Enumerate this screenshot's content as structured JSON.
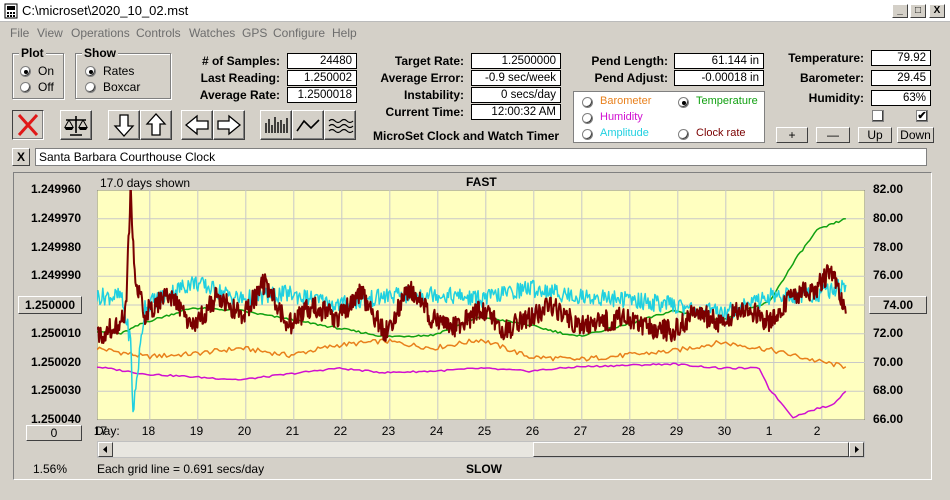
{
  "window": {
    "title": "C:\\microset\\2020_10_02.mst",
    "minimize": "_",
    "maximize": "□",
    "close": "X"
  },
  "menu": [
    "File",
    "View",
    "Operations",
    "Controls",
    "Watches",
    "GPS",
    "Configure",
    "Help"
  ],
  "plot": {
    "title": "Plot",
    "options": [
      "On",
      "Off"
    ],
    "selected": "On"
  },
  "show": {
    "title": "Show",
    "options": [
      "Rates",
      "Boxcar"
    ],
    "selected": "Rates"
  },
  "stats": {
    "samples_label": "# of Samples:",
    "samples": "24480",
    "last_label": "Last Reading:",
    "last": "1.250002",
    "avg_rate_label": "Average Rate:",
    "avg_rate": "1.2500018",
    "target_label": "Target Rate:",
    "target": "1.2500000",
    "avg_err_label": "Average Error:",
    "avg_err": "-0.9 sec/week",
    "instab_label": "Instability:",
    "instab": "0 secs/day",
    "time_label": "Current Time:",
    "time": "12:00:32 AM",
    "pend_len_label": "Pend Length:",
    "pend_len": "61.144 in",
    "pend_adj_label": "Pend Adjust:",
    "pend_adj": "-0.00018 in",
    "temp_label": "Temperature:",
    "temp": "79.92",
    "baro_label": "Barometer:",
    "baro": "29.45",
    "hum_label": "Humidity:",
    "hum": "63%"
  },
  "app_name": "MicroSet Clock and Watch Timer",
  "sensor_options": [
    {
      "label": "Barometer",
      "color": "#e8801c",
      "selected": false
    },
    {
      "label": "Temperature",
      "color": "#10a010",
      "selected": true
    },
    {
      "label": "Humidity",
      "color": "#d010d0",
      "selected": false
    },
    {
      "label": "Amplitude",
      "color": "#20d0e0",
      "selected": false
    },
    {
      "label": "Clock rate",
      "color": "#7a0000",
      "selected": false
    }
  ],
  "small_buttons": [
    "+",
    "—",
    "Up",
    "Down"
  ],
  "checkboxes": {
    "left": "",
    "right": "✔"
  },
  "clock_x": "X",
  "clock_name": "Santa Barbara Courthouse Clock",
  "chart_data": {
    "type": "line",
    "days_shown": "17.0 days shown",
    "top_label": "FAST",
    "bottom_label": "SLOW",
    "grid_note": "Each grid line = 0.691 secs/day",
    "percent": "1.56%",
    "x_title": "Day:",
    "left_button": "0",
    "left_axis": [
      "1.249960",
      "1.249970",
      "1.249980",
      "1.249990",
      "1.250000",
      "1.250010",
      "1.250020",
      "1.250030",
      "1.250040"
    ],
    "left_axis_range": [
      1.24996,
      1.25004
    ],
    "right_axis": [
      "82.00",
      "80.00",
      "78.00",
      "76.00",
      "74.00",
      "72.00",
      "70.00",
      "68.00",
      "66.00"
    ],
    "right_axis_range": [
      66,
      82
    ],
    "days": [
      "17",
      "18",
      "19",
      "20",
      "21",
      "22",
      "23",
      "24",
      "25",
      "26",
      "27",
      "28",
      "29",
      "30",
      "1",
      "2"
    ],
    "series": [
      {
        "name": "Barometer",
        "color": "#e8801c",
        "x": [
          0,
          1,
          2,
          3,
          4,
          5,
          6,
          7,
          8,
          9,
          10,
          11,
          12,
          13,
          14,
          15,
          15.6
        ],
        "y": [
          71.0,
          70.4,
          70.6,
          71.0,
          70.5,
          71.2,
          71.5,
          71.0,
          71.6,
          70.4,
          70.2,
          70.5,
          70.8,
          71.4,
          70.9,
          70.1,
          69.7
        ]
      },
      {
        "name": "Temperature",
        "color": "#10a010",
        "x": [
          0,
          0.5,
          1,
          2,
          3,
          4,
          5,
          6,
          7,
          8,
          9,
          10,
          11,
          12,
          13,
          14,
          14.6,
          15,
          15.6
        ],
        "y": [
          72.2,
          72.0,
          72.8,
          73.8,
          73.6,
          73.0,
          72.4,
          71.8,
          71.9,
          73.2,
          72.6,
          71.8,
          72.6,
          73.6,
          73.0,
          74.2,
          77.4,
          79.2,
          80.0
        ]
      },
      {
        "name": "Humidity",
        "color": "#d010d0",
        "x": [
          0,
          1,
          2,
          3,
          4,
          5,
          6,
          7,
          8,
          9,
          10,
          11,
          12,
          13,
          13.8,
          14,
          14.5,
          15,
          15.3,
          15.6
        ],
        "y": [
          69.7,
          69.2,
          69.0,
          68.8,
          69.2,
          69.6,
          69.3,
          69.4,
          69.6,
          69.4,
          69.7,
          69.8,
          69.9,
          69.6,
          69.6,
          68.2,
          66.2,
          66.8,
          67.0,
          68.0
        ]
      },
      {
        "name": "Amplitude",
        "color": "#20d0e0",
        "x": [
          0,
          0.5,
          0.7,
          0.75,
          1,
          2,
          3,
          4,
          5,
          6,
          7,
          8,
          9,
          10,
          11,
          12,
          13,
          14,
          15,
          15.6
        ],
        "y": [
          74.6,
          74.6,
          71.5,
          66.5,
          74.0,
          75.6,
          74.4,
          74.8,
          74.0,
          74.6,
          74.8,
          74.4,
          75.2,
          74.6,
          74.4,
          74.0,
          73.4,
          74.6,
          74.8,
          75.4
        ]
      },
      {
        "name": "Clock rate",
        "color": "#7a0000",
        "x": [
          0,
          0.4,
          0.6,
          0.7,
          0.8,
          1,
          1.5,
          2,
          2.5,
          3,
          3.5,
          4,
          4.5,
          5,
          5.5,
          6,
          6.5,
          7,
          7.5,
          8,
          8.5,
          9,
          9.5,
          10,
          10.5,
          11,
          11.5,
          12,
          12.5,
          13,
          13.5,
          14,
          14.5,
          15,
          15.3,
          15.6
        ],
        "y": [
          1.250011,
          1.250007,
          1.250002,
          1.24996,
          1.249993,
          1.250003,
          1.249996,
          1.250008,
          1.249997,
          1.250004,
          1.249992,
          1.250007,
          1.25,
          1.250005,
          1.249996,
          1.25001,
          1.249994,
          1.250005,
          1.250008,
          1.250001,
          1.250009,
          1.250004,
          1.25,
          1.250007,
          1.250006,
          1.250004,
          1.250008,
          1.250009,
          1.250002,
          1.250007,
          1.25,
          1.250006,
          1.249997,
          1.249994,
          1.249987,
          1.250003
        ]
      }
    ]
  }
}
